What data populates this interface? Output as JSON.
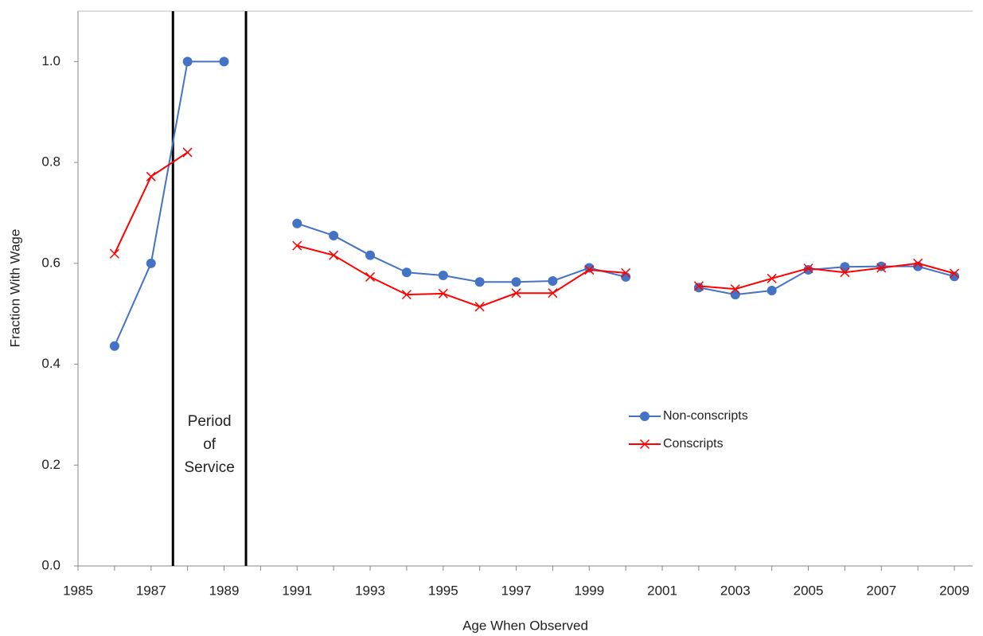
{
  "chart_data": {
    "type": "line",
    "x_label": "Age When Observed",
    "y_label": "Fraction With Wage",
    "annotation": [
      "Period",
      "of",
      "Service"
    ],
    "vlines": [
      1987.6,
      1989.6
    ],
    "x": [
      1986,
      1987,
      1988,
      1989,
      1990,
      1991,
      1992,
      1993,
      1994,
      1995,
      1996,
      1997,
      1998,
      1999,
      2000,
      2001,
      2002,
      2003,
      2004,
      2005,
      2006,
      2007,
      2008,
      2009
    ],
    "series": [
      {
        "name": "Non-conscripts",
        "color": "#4472c4",
        "marker": "circle",
        "values": [
          0.436,
          0.6,
          1.0,
          1.0,
          null,
          0.679,
          0.655,
          0.616,
          0.582,
          0.576,
          0.563,
          0.563,
          0.565,
          0.591,
          0.573,
          null,
          0.552,
          0.538,
          0.546,
          0.587,
          0.593,
          0.594,
          0.594,
          0.574
        ]
      },
      {
        "name": "Conscripts",
        "color": "#ff0000",
        "marker": "x",
        "values": [
          0.619,
          0.772,
          0.82,
          null,
          null,
          0.635,
          0.616,
          0.573,
          0.538,
          0.54,
          0.514,
          0.541,
          0.541,
          0.587,
          0.581,
          null,
          0.555,
          0.549,
          0.57,
          0.59,
          0.582,
          0.591,
          0.6,
          0.58
        ]
      }
    ],
    "xlim": [
      1985,
      2009.5
    ],
    "xticks": [
      1985,
      1987,
      1989,
      1991,
      1993,
      1995,
      1997,
      1999,
      2001,
      2003,
      2005,
      2007,
      2009
    ],
    "xminorticks": [
      1986,
      1988,
      1990,
      1992,
      1994,
      1996,
      1998,
      2000,
      2002,
      2004,
      2006,
      2008
    ],
    "ylim": [
      0,
      1.1
    ],
    "yticks": [
      {
        "value": 0,
        "label": "0.0"
      },
      0.2,
      0.4,
      0.6,
      0.8,
      {
        "value": 1,
        "label": "1.0"
      }
    ]
  }
}
